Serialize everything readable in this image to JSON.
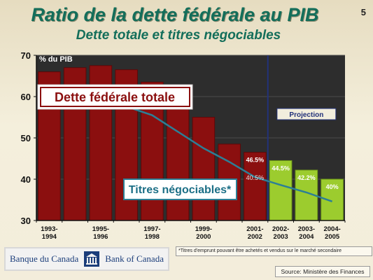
{
  "title": "Ratio de la dette fédérale au PIB",
  "subtitle": "Dette totale et titres négociables",
  "page_number": "5",
  "footnote": "*Titres d'emprunt pouvant être achetés et vendus sur le marché secondaire",
  "source": "Source: Ministère des Finances",
  "logo": {
    "french": "Banque du Canada",
    "english": "Bank of Canada"
  },
  "colors": {
    "bar_actual": "#8b0f0f",
    "bar_projection": "#9ccc2e",
    "line": "#2c7f96",
    "projection_divider": "#22327a",
    "plot_background": "#2d2d2d",
    "title": "#136e5a"
  },
  "chart_data": {
    "type": "bar",
    "title": "Ratio de la dette fédérale au PIB",
    "subtitle": "Dette totale et titres négociables",
    "ylabel": "% du PIB",
    "ylim": [
      30,
      70
    ],
    "yticks": [
      "30",
      "40",
      "50",
      "60",
      "70"
    ],
    "categories": [
      "1993-1994",
      "1994-1995",
      "1995-1996",
      "1996-1997",
      "1997-1998",
      "1998-1999",
      "1999-2000",
      "2000-2001",
      "2001-2002",
      "2002-2003",
      "2003-2004",
      "2004-2005"
    ],
    "x_tick_labels": [
      {
        "index": 0,
        "line1": "1993-",
        "line2": "1994"
      },
      {
        "index": 2,
        "line1": "1995-",
        "line2": "1996"
      },
      {
        "index": 4,
        "line1": "1997-",
        "line2": "1998"
      },
      {
        "index": 6,
        "line1": "1999-",
        "line2": "2000"
      },
      {
        "index": 8,
        "line1": "2001-",
        "line2": "2002"
      },
      {
        "index": 9,
        "line1": "2002-",
        "line2": "2003"
      },
      {
        "index": 10,
        "line1": "2003-",
        "line2": "2004"
      },
      {
        "index": 11,
        "line1": "2004-",
        "line2": "2005"
      }
    ],
    "projection_start_index": 9,
    "projection_label": "Projection",
    "series": [
      {
        "name": "Dette fédérale totale",
        "kind": "bar",
        "values": [
          66.0,
          67.0,
          67.5,
          66.5,
          63.5,
          60.0,
          55.0,
          48.5,
          46.5,
          44.5,
          42.2,
          40.0
        ],
        "data_labels": {
          "8": "46.5%",
          "9": "44.5%",
          "10": "42.2%",
          "11": "40%"
        }
      },
      {
        "name": "Titres négociables*",
        "kind": "line",
        "values": [
          57.2,
          57.4,
          58.1,
          57.6,
          55.5,
          51.5,
          47.5,
          44.2,
          40.5,
          38.6,
          36.8,
          34.6
        ],
        "data_labels": {
          "8": "40.5%"
        }
      }
    ],
    "grid": true
  }
}
